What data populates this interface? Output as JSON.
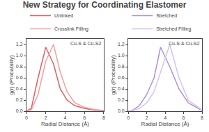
{
  "chart_data": [
    {
      "type": "line",
      "title": "New Strategy for Coordinating Elastomer",
      "x": [
        0,
        0.5,
        1.2,
        2.0,
        2.8,
        3.5,
        4.2,
        5.0,
        6.0,
        7.0,
        8.0
      ],
      "series": [
        {
          "name": "Unlinked",
          "color": "#e06060",
          "values": [
            0,
            0.05,
            0.6,
            1.15,
            0.85,
            0.4,
            0.2,
            0.1,
            0.05,
            0.02,
            0.01
          ]
        },
        {
          "name": "Crosslink Filling",
          "color": "#f0a0a0",
          "values": [
            0,
            0.02,
            0.3,
            0.9,
            1.2,
            0.7,
            0.35,
            0.15,
            0.07,
            0.03,
            0.01
          ]
        }
      ],
      "xlabel": "Radial Distance (Å)",
      "ylabel": "g(r) (Probability)",
      "annotations": [
        "Cu-S & Cu-S2"
      ],
      "xlim": [
        0,
        8
      ],
      "ylim": [
        0,
        1.3
      ],
      "xticks": [
        0,
        2,
        4,
        6,
        8
      ],
      "yticks": [
        {
          "value": 0,
          "label": "0.0"
        },
        0.2,
        0.4,
        0.6,
        0.8,
        {
          "value": 1,
          "label": "1.0"
        },
        1.2
      ],
      "grid": false,
      "legend": "upper left"
    },
    {
      "type": "line",
      "x": [
        0,
        0.5,
        1.2,
        2.0,
        2.8,
        3.5,
        4.5,
        5.5,
        6.5,
        7.5,
        8.0
      ],
      "series": [
        {
          "name": "Stretched",
          "color": "#b090d8",
          "values": [
            0,
            0.02,
            0.1,
            0.3,
            0.6,
            1.15,
            0.8,
            0.4,
            0.15,
            0.05,
            0.01
          ]
        },
        {
          "name": "Stretched Filling",
          "color": "#d8c0f0",
          "values": [
            0,
            0.01,
            0.05,
            0.15,
            0.35,
            0.7,
            1.2,
            0.6,
            0.2,
            0.08,
            0.02
          ]
        }
      ],
      "xlabel": "Radial Distance (Å)",
      "ylabel": "g(r) (Probability)",
      "annotations": [
        "Cu-S & Cu-S2"
      ],
      "xlim": [
        0,
        8
      ],
      "ylim": [
        0,
        1.3
      ],
      "xticks": [
        0,
        2,
        4,
        6,
        8
      ],
      "yticks": [
        {
          "value": 0,
          "label": "0.0"
        },
        0.2,
        0.4,
        0.6,
        0.8,
        {
          "value": 1,
          "label": "1.0"
        },
        1.2
      ],
      "grid": false,
      "legend": "upper left"
    }
  ]
}
